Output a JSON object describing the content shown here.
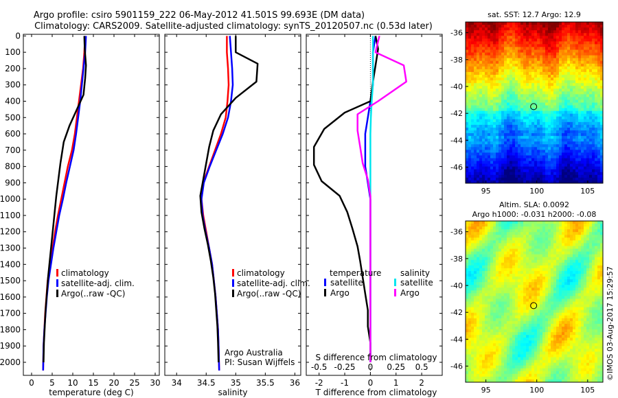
{
  "title": {
    "line1": "Argo profile: csiro 5901159_222 06-May-2012 41.501S 99.693E (DM data)",
    "line2": "Climatology: CARS2009. Satellite-adjusted climatology: synTS_20120507.nc (0.53d later)"
  },
  "depth_ticks": [
    0,
    100,
    200,
    300,
    400,
    500,
    600,
    700,
    800,
    900,
    1000,
    1100,
    1200,
    1300,
    1400,
    1500,
    1600,
    1700,
    1800,
    1900,
    2000
  ],
  "colors": {
    "climatology": "#ff0000",
    "satellite": "#0000ff",
    "argo": "#000000",
    "sat_s": "#00e5ee",
    "argo_s": "#ff00ff"
  },
  "chart_data": [
    {
      "type": "line",
      "id": "temperature",
      "xlabel": "temperature (deg C)",
      "xlim": [
        -2,
        31
      ],
      "ylim": [
        2080,
        -10
      ],
      "xticks": [
        0,
        5,
        10,
        15,
        20,
        25,
        30
      ],
      "legend": [
        "climatology",
        "satellite-adj. clim.",
        "Argo(..raw -QC)"
      ],
      "series": [
        {
          "name": "climatology",
          "color": "#ff0000",
          "x": [
            13,
            12.8,
            12.5,
            12.0,
            11.5,
            11.0,
            10.5,
            9.8,
            8.8,
            8.0,
            7.2,
            6.4,
            5.7,
            5.1,
            4.5,
            3.9,
            3.6,
            3.3,
            3.1,
            2.9,
            2.8
          ],
          "y": [
            0,
            100,
            200,
            300,
            400,
            500,
            600,
            700,
            800,
            900,
            1000,
            1100,
            1200,
            1300,
            1400,
            1500,
            1600,
            1700,
            1800,
            1900,
            2050
          ]
        },
        {
          "name": "satellite-adj. clim.",
          "color": "#0000ff",
          "x": [
            13.2,
            13,
            12.6,
            12.2,
            11.8,
            11.3,
            10.8,
            10.2,
            9.3,
            8.4,
            7.6,
            6.7,
            6.0,
            5.3,
            4.7,
            4.1,
            3.7,
            3.4,
            3.1,
            2.9,
            2.8
          ],
          "y": [
            0,
            100,
            200,
            300,
            400,
            500,
            600,
            700,
            800,
            900,
            1000,
            1100,
            1200,
            1300,
            1400,
            1500,
            1600,
            1700,
            1800,
            1900,
            2050
          ]
        },
        {
          "name": "Argo(..raw -QC)",
          "color": "#000000",
          "x": [
            12.8,
            12.9,
            13.2,
            13.0,
            12.6,
            11.0,
            9.2,
            7.8,
            7.0,
            6.5,
            6.0,
            5.6,
            5.2,
            4.8,
            4.4,
            4.0,
            3.7,
            3.4,
            3.2,
            3.0,
            2.9
          ],
          "y": [
            0,
            80,
            180,
            260,
            360,
            450,
            550,
            650,
            780,
            880,
            980,
            1080,
            1180,
            1280,
            1380,
            1480,
            1580,
            1680,
            1780,
            1880,
            2000
          ]
        }
      ]
    },
    {
      "type": "line",
      "id": "salinity",
      "xlabel": "salinity",
      "xlim": [
        33.8,
        36.1
      ],
      "ylim": [
        2080,
        -10
      ],
      "xticks": [
        34,
        34.5,
        35,
        35.5,
        36
      ],
      "legend": [
        "climatology",
        "satellite-adj. clim.",
        "Argo(..raw -QC)"
      ],
      "annotation": [
        "Argo Australia",
        "PI: Susan Wijffels"
      ],
      "series": [
        {
          "name": "climatology",
          "color": "#ff0000",
          "x": [
            34.85,
            34.85,
            34.87,
            34.88,
            34.86,
            34.83,
            34.75,
            34.65,
            34.55,
            34.45,
            34.42,
            34.45,
            34.5,
            34.55,
            34.6,
            34.63,
            34.66,
            34.68,
            34.7,
            34.71,
            34.72
          ],
          "y": [
            0,
            100,
            200,
            300,
            400,
            500,
            600,
            700,
            800,
            900,
            1000,
            1100,
            1200,
            1300,
            1400,
            1500,
            1600,
            1700,
            1800,
            1900,
            2050
          ]
        },
        {
          "name": "satellite-adj. clim.",
          "color": "#0000ff",
          "x": [
            34.9,
            34.92,
            34.94,
            34.95,
            34.92,
            34.87,
            34.78,
            34.67,
            34.56,
            34.46,
            34.42,
            34.44,
            34.49,
            34.55,
            34.6,
            34.63,
            34.66,
            34.68,
            34.7,
            34.71,
            34.72
          ],
          "y": [
            0,
            100,
            200,
            300,
            400,
            500,
            600,
            700,
            800,
            900,
            1000,
            1100,
            1200,
            1300,
            1400,
            1500,
            1600,
            1700,
            1800,
            1900,
            2050
          ]
        },
        {
          "name": "Argo(..raw -QC)",
          "color": "#000000",
          "x": [
            35.0,
            35.0,
            35.37,
            35.35,
            35.0,
            34.75,
            34.62,
            34.55,
            34.5,
            34.45,
            34.4,
            34.42,
            34.47,
            34.53,
            34.58,
            34.62,
            34.65,
            34.67,
            34.69,
            34.7,
            34.71
          ],
          "y": [
            0,
            100,
            170,
            280,
            380,
            480,
            580,
            680,
            780,
            880,
            980,
            1080,
            1180,
            1280,
            1380,
            1480,
            1580,
            1680,
            1780,
            1880,
            2000
          ]
        }
      ]
    },
    {
      "type": "line",
      "id": "difference",
      "xlabel": "T difference from climatology",
      "xlabel_top": "S difference from climatology",
      "xlim": [
        -2.5,
        2.8
      ],
      "ylim": [
        2080,
        -10
      ],
      "xticks": [
        -2,
        -1,
        0,
        1,
        2
      ],
      "sticks": [
        "-0.5",
        "-0.25",
        "0",
        "0.25",
        "0.5"
      ],
      "legend_left": {
        "title": "temperature",
        "items": [
          "satellite",
          "Argo"
        ]
      },
      "legend_right": {
        "title": "salinity",
        "items": [
          "satellite",
          "Argo"
        ]
      },
      "series": [
        {
          "name": "T satellite",
          "color": "#0000ff",
          "x": [
            0.2,
            0.1,
            0.1,
            0.1,
            0.0,
            -0.1,
            -0.2,
            -0.2,
            -0.2,
            -0.1,
            0.0,
            0.0,
            0.0,
            0.0,
            0.0,
            0.0,
            0.0,
            0.0,
            0.0,
            0.0,
            0.0
          ],
          "y": [
            0,
            100,
            200,
            300,
            400,
            500,
            600,
            700,
            800,
            900,
            1000,
            1100,
            1200,
            1300,
            1400,
            1500,
            1600,
            1700,
            1800,
            1900,
            2000
          ]
        },
        {
          "name": "T Argo",
          "color": "#000000",
          "x": [
            0.2,
            0.3,
            0.2,
            0.1,
            0.0,
            -1.0,
            -1.8,
            -2.2,
            -2.2,
            -1.9,
            -1.2,
            -0.9,
            -0.7,
            -0.5,
            -0.4,
            -0.3,
            -0.2,
            -0.1,
            -0.1,
            0.0,
            0.0
          ],
          "y": [
            0,
            80,
            180,
            280,
            400,
            470,
            570,
            680,
            790,
            890,
            980,
            1080,
            1180,
            1290,
            1380,
            1480,
            1580,
            1680,
            1780,
            1880,
            2000
          ]
        },
        {
          "name": "S satellite",
          "color": "#00e5ee",
          "x": [
            0.1,
            0.1,
            0.1,
            0.1,
            0.05,
            0.02,
            0.0,
            0.0,
            0.0,
            0.0,
            0.0,
            0.0,
            0.0,
            0.0,
            0.0,
            0.0,
            0.0,
            0.0,
            0.0,
            0.0,
            0.0
          ],
          "y": [
            0,
            100,
            200,
            300,
            400,
            500,
            600,
            700,
            800,
            900,
            1000,
            1100,
            1200,
            1300,
            1400,
            1500,
            1600,
            1700,
            1800,
            1900,
            2000
          ]
        },
        {
          "name": "S Argo",
          "color": "#ff00ff",
          "x": [
            0.35,
            0.2,
            1.3,
            1.4,
            0.3,
            -0.5,
            -0.5,
            -0.4,
            -0.3,
            -0.1,
            0.0,
            0.0,
            0.0,
            0.0,
            0.0,
            0.0,
            0.0,
            0.0,
            0.0,
            0.0,
            0.0
          ],
          "y": [
            0,
            100,
            180,
            280,
            400,
            480,
            580,
            680,
            780,
            880,
            980,
            1080,
            1180,
            1280,
            1380,
            1480,
            1580,
            1680,
            1780,
            1880,
            2000
          ]
        }
      ]
    },
    {
      "type": "heatmap",
      "id": "sst_map",
      "title": "sat. SST: 12.7  Argo: 12.9",
      "xticks": [
        95,
        100,
        105
      ],
      "yticks": [
        -36,
        -38,
        -40,
        -42,
        -44,
        -46
      ],
      "xlim": [
        93,
        106.5
      ],
      "ylim": [
        -47.2,
        -35.2
      ],
      "marker": {
        "lon": 99.693,
        "lat": -41.501
      }
    },
    {
      "type": "heatmap",
      "id": "sla_map",
      "title_line1": "Altim. SLA: 0.0092",
      "title_line2": "Argo h1000: -0.031  h2000: -0.08",
      "xticks": [
        95,
        100,
        105
      ],
      "yticks": [
        -36,
        -38,
        -40,
        -42,
        -44,
        -46
      ],
      "xlim": [
        93,
        106.5
      ],
      "ylim": [
        -47.2,
        -35.2
      ],
      "marker": {
        "lon": 99.693,
        "lat": -41.501
      }
    }
  ],
  "footer_stamp": "©IMOS 03-Aug-2017 15:29:57"
}
